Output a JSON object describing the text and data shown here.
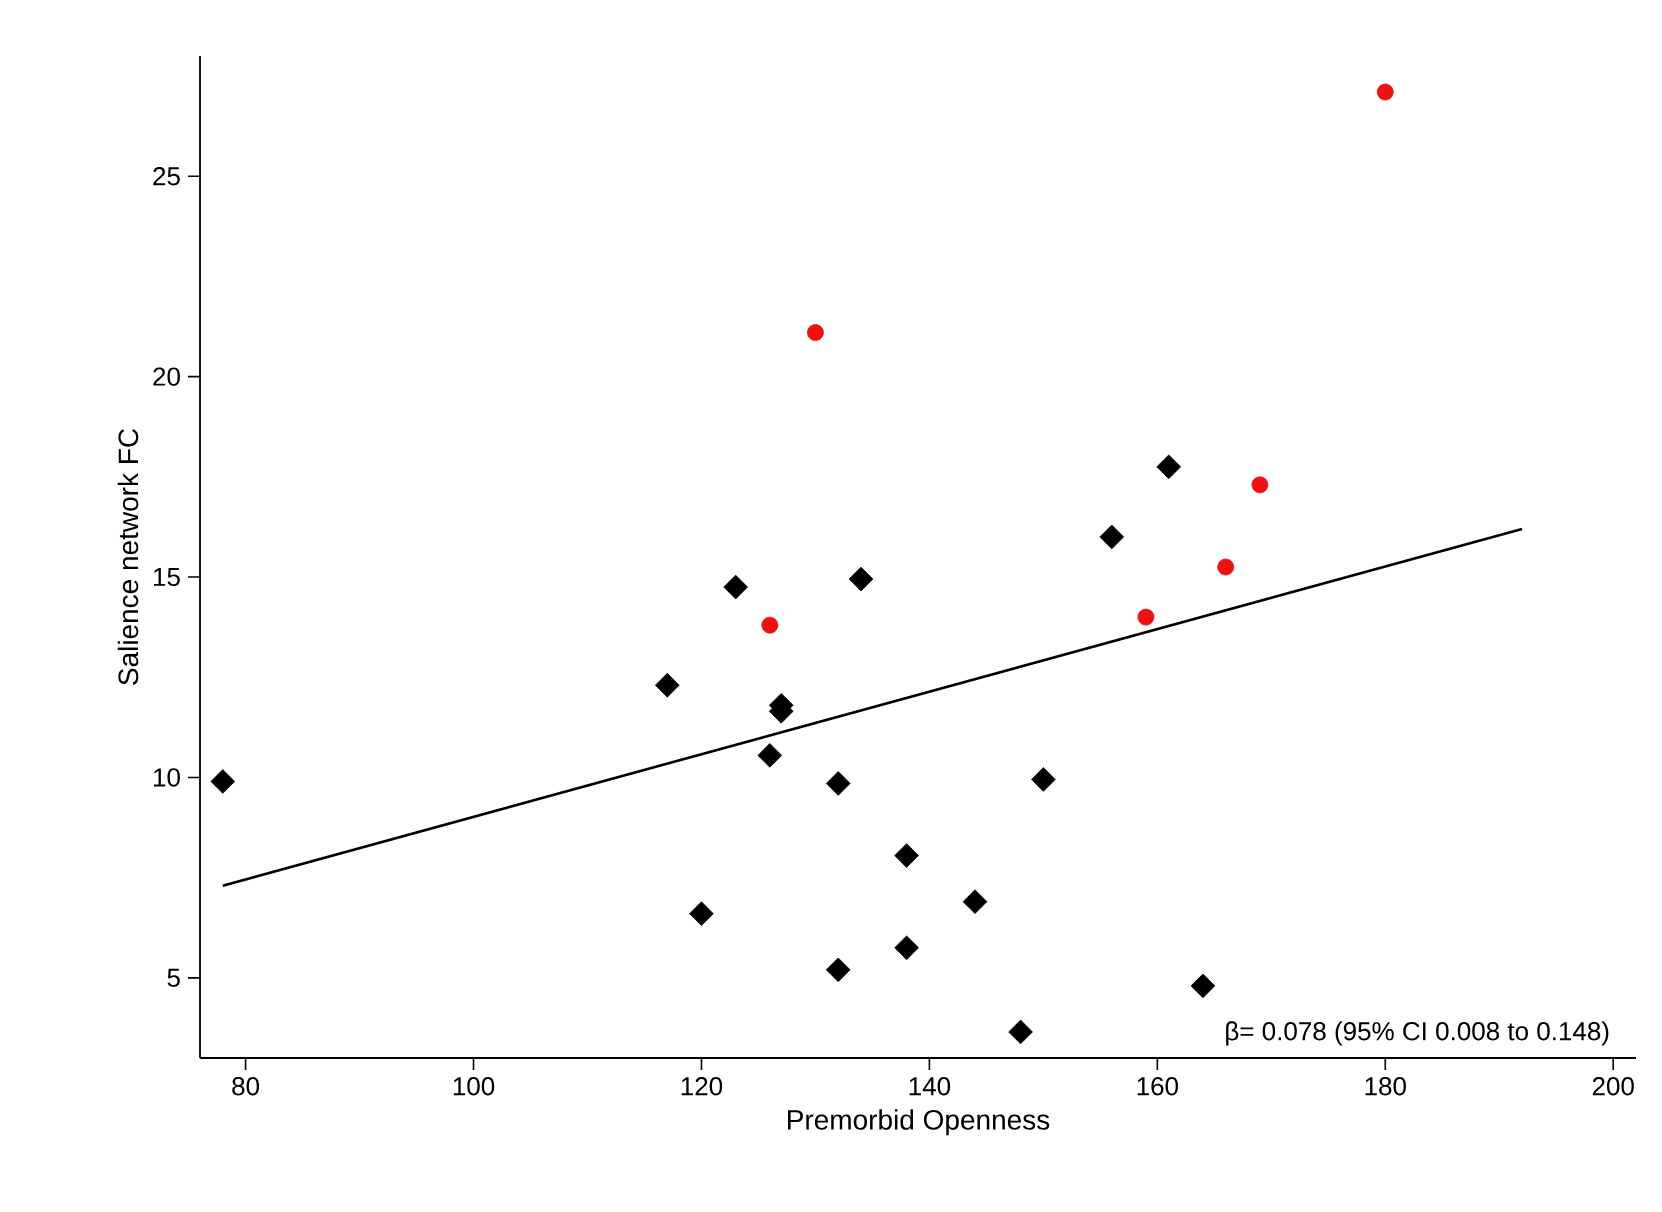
{
  "chart_data": {
    "type": "scatter",
    "xlabel": "Premorbid Openness",
    "ylabel": "Salience network FC",
    "xlim": [
      76,
      202
    ],
    "ylim": [
      3,
      28
    ],
    "xticks": [
      80,
      100,
      120,
      140,
      160,
      180,
      200
    ],
    "yticks": [
      5,
      10,
      15,
      20,
      25
    ],
    "grid": false,
    "annotations": [
      "β= 0.078 (95% CI 0.008 to 0.148)"
    ],
    "series": [
      {
        "marker": "diamond",
        "color": "#000000",
        "x": [
          78,
          117,
          123,
          127,
          127,
          126,
          132,
          134,
          120,
          132,
          138,
          138,
          144,
          150,
          156,
          161,
          164,
          148
        ],
        "values": [
          9.9,
          12.3,
          14.75,
          11.8,
          11.65,
          10.55,
          9.85,
          14.95,
          6.6,
          5.2,
          8.05,
          5.75,
          6.9,
          9.95,
          16.0,
          17.75,
          4.8,
          3.65
        ]
      },
      {
        "marker": "circle",
        "color": "#ee1111",
        "x": [
          130,
          126,
          180,
          169,
          166,
          159
        ],
        "values": [
          21.1,
          13.8,
          27.1,
          17.3,
          15.25,
          14.0
        ]
      },
      {
        "type": "line",
        "marker": "none",
        "line_style": "solid",
        "color": "#000000",
        "x": [
          78,
          192
        ],
        "values": [
          7.3,
          16.2
        ]
      }
    ]
  }
}
